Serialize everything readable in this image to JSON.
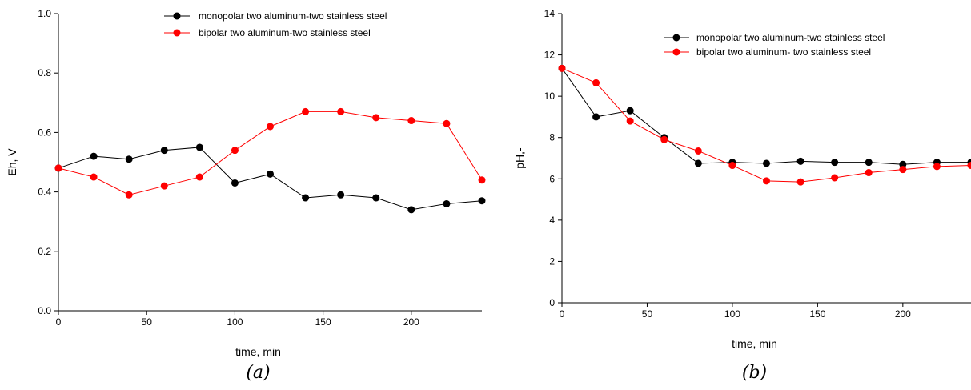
{
  "chart_data": [
    {
      "type": "line",
      "panel_label": "(a)",
      "xlabel": "time, min",
      "ylabel": "Eh, V",
      "xlim": [
        0,
        240
      ],
      "ylim": [
        0,
        1.0
      ],
      "x_ticks": [
        0,
        50,
        100,
        150,
        200
      ],
      "x_tick_labels": [
        "0",
        "50",
        "100",
        "150",
        "200"
      ],
      "y_ticks": [
        0,
        0.2,
        0.4,
        0.6,
        0.8,
        1.0
      ],
      "y_tick_labels": [
        "0.0",
        "0.2",
        "0.4",
        "0.6",
        "0.8",
        "1.0"
      ],
      "grid": false,
      "legend_position": "top-center",
      "series": [
        {
          "name": "monopolar two aluminum-two stainless steel",
          "color": "#000000",
          "x": [
            0,
            20,
            40,
            60,
            80,
            100,
            120,
            140,
            160,
            180,
            200,
            220,
            240
          ],
          "y": [
            0.48,
            0.52,
            0.51,
            0.54,
            0.55,
            0.43,
            0.46,
            0.38,
            0.39,
            0.38,
            0.34,
            0.36,
            0.37
          ]
        },
        {
          "name": "bipolar two aluminum-two stainless steel",
          "color": "#ff0000",
          "x": [
            0,
            20,
            40,
            60,
            80,
            100,
            120,
            140,
            160,
            180,
            200,
            220,
            240
          ],
          "y": [
            0.48,
            0.45,
            0.39,
            0.42,
            0.45,
            0.54,
            0.62,
            0.67,
            0.67,
            0.65,
            0.64,
            0.63,
            0.44
          ]
        }
      ]
    },
    {
      "type": "line",
      "panel_label": "(b)",
      "xlabel": "time, min",
      "ylabel": "pH,-",
      "xlim": [
        0,
        240
      ],
      "ylim": [
        0,
        14
      ],
      "x_ticks": [
        0,
        50,
        100,
        150,
        200
      ],
      "x_tick_labels": [
        "0",
        "50",
        "100",
        "150",
        "200"
      ],
      "y_ticks": [
        0,
        2,
        4,
        6,
        8,
        10,
        12,
        14
      ],
      "y_tick_labels": [
        "0",
        "2",
        "4",
        "6",
        "8",
        "10",
        "12",
        "14"
      ],
      "grid": false,
      "legend_position": "top-right",
      "series": [
        {
          "name": "monopolar two aluminum-two stainless steel",
          "color": "#000000",
          "x": [
            0,
            20,
            40,
            60,
            80,
            100,
            120,
            140,
            160,
            180,
            200,
            220,
            240
          ],
          "y": [
            11.35,
            9.0,
            9.3,
            8.0,
            6.75,
            6.8,
            6.75,
            6.85,
            6.8,
            6.8,
            6.7,
            6.8,
            6.8
          ]
        },
        {
          "name": "bipolar two aluminum- two stainless steel",
          "color": "#ff0000",
          "x": [
            0,
            20,
            40,
            60,
            80,
            100,
            120,
            140,
            160,
            180,
            200,
            220,
            240
          ],
          "y": [
            11.35,
            10.65,
            8.8,
            7.9,
            7.35,
            6.65,
            5.9,
            5.85,
            6.05,
            6.3,
            6.45,
            6.6,
            6.65
          ]
        }
      ]
    }
  ]
}
